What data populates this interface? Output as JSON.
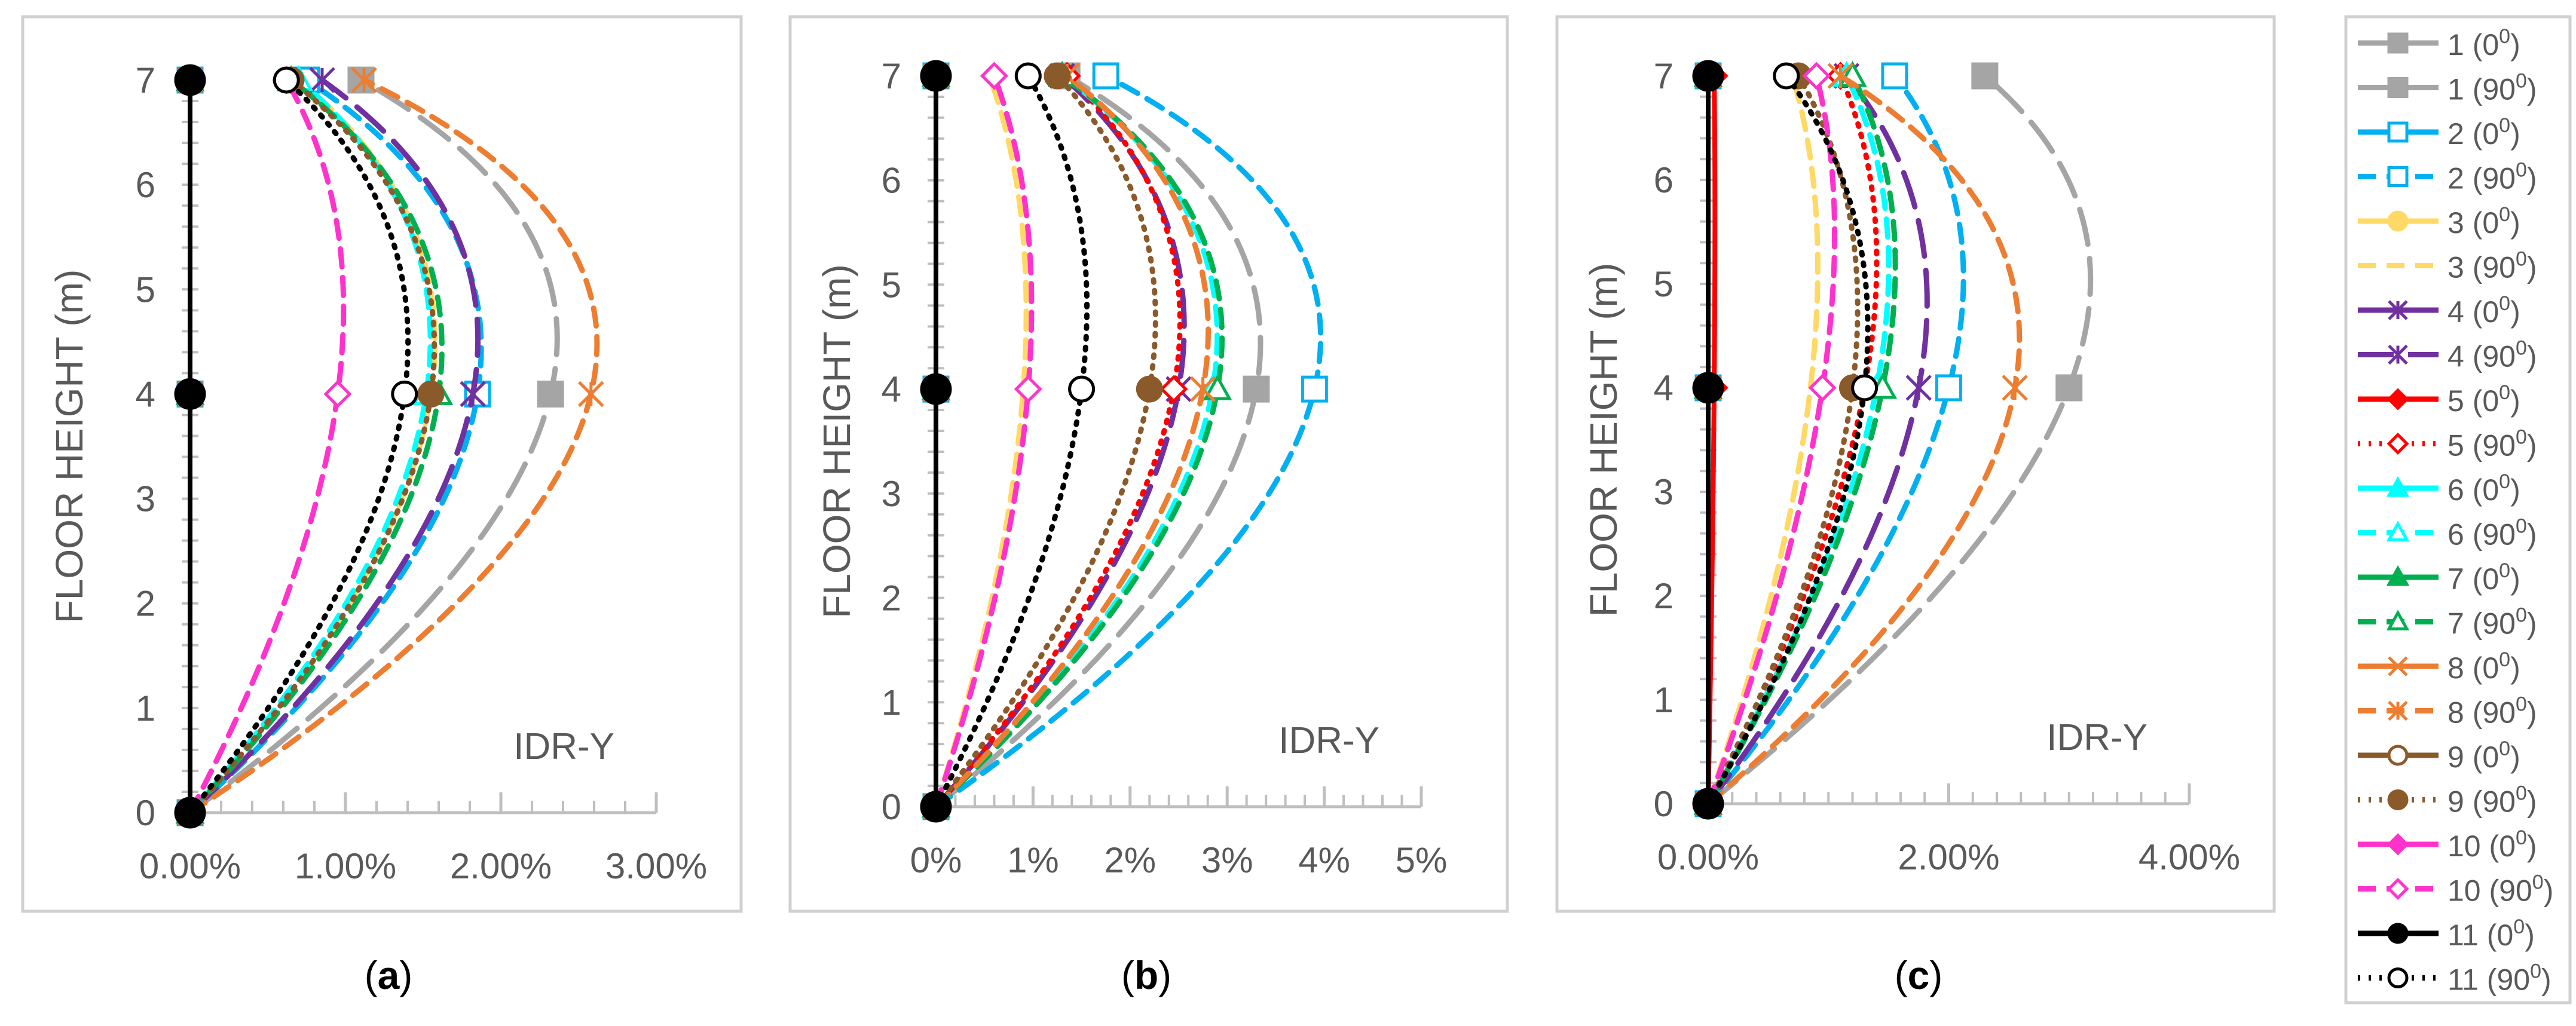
{
  "figure": {
    "colors": {
      "s1": "#A5A5A5",
      "s2": "#00B0F0",
      "s3": "#FFD966",
      "s4": "#7030A0",
      "s5": "#FF0000",
      "s6": "#00FFFF",
      "s7": "#00B050",
      "s8": "#ED7D31",
      "s9": "#8B5A2B",
      "s10": "#FF33CC",
      "s11": "#000000",
      "s11a": "#002060"
    },
    "legend": [
      {
        "id": "1-0",
        "num": "1",
        "deg": "0",
        "color": "#A5A5A5",
        "dash": "solid",
        "marker": "square",
        "filled": true
      },
      {
        "id": "1-90",
        "num": "1",
        "deg": "90",
        "color": "#A5A5A5",
        "dash": "longdash",
        "marker": "square",
        "filled": true
      },
      {
        "id": "2-0",
        "num": "2",
        "deg": "0",
        "color": "#00B0F0",
        "dash": "solid",
        "marker": "square",
        "filled": false
      },
      {
        "id": "2-90",
        "num": "2",
        "deg": "90",
        "color": "#00B0F0",
        "dash": "dash",
        "marker": "square",
        "filled": false
      },
      {
        "id": "3-0",
        "num": "3",
        "deg": "0",
        "color": "#FFD966",
        "dash": "solid",
        "marker": "circle",
        "filled": true
      },
      {
        "id": "3-90",
        "num": "3",
        "deg": "90",
        "color": "#FFD966",
        "dash": "dash",
        "marker": "none",
        "filled": false
      },
      {
        "id": "4-0",
        "num": "4",
        "deg": "0",
        "color": "#7030A0",
        "dash": "solid",
        "marker": "asterisk",
        "filled": true
      },
      {
        "id": "4-90",
        "num": "4",
        "deg": "90",
        "color": "#7030A0",
        "dash": "longdash",
        "marker": "asterisk",
        "filled": true
      },
      {
        "id": "5-0",
        "num": "5",
        "deg": "0",
        "color": "#FF0000",
        "dash": "solid",
        "marker": "diamond",
        "filled": true
      },
      {
        "id": "5-90",
        "num": "5",
        "deg": "90",
        "color": "#FF0000",
        "dash": "dot",
        "marker": "diamond",
        "filled": false
      },
      {
        "id": "6-0",
        "num": "6",
        "deg": "0",
        "color": "#00FFFF",
        "dash": "solid",
        "marker": "triangle",
        "filled": true
      },
      {
        "id": "6-90",
        "num": "6",
        "deg": "90",
        "color": "#00FFFF",
        "dash": "dash",
        "marker": "triangle",
        "filled": false
      },
      {
        "id": "7-0",
        "num": "7",
        "deg": "0",
        "color": "#00B050",
        "dash": "solid",
        "marker": "triangle",
        "filled": true
      },
      {
        "id": "7-90",
        "num": "7",
        "deg": "90",
        "color": "#00B050",
        "dash": "dash",
        "marker": "triangle",
        "filled": false
      },
      {
        "id": "8-0",
        "num": "8",
        "deg": "0",
        "color": "#ED7D31",
        "dash": "solid",
        "marker": "x",
        "filled": true
      },
      {
        "id": "8-90",
        "num": "8",
        "deg": "90",
        "color": "#ED7D31",
        "dash": "dash",
        "marker": "asterisk",
        "filled": true
      },
      {
        "id": "9-0",
        "num": "9",
        "deg": "0",
        "color": "#8B5A2B",
        "dash": "solid",
        "marker": "circle",
        "filled": false
      },
      {
        "id": "9-90",
        "num": "9",
        "deg": "90",
        "color": "#8B5A2B",
        "dash": "dot",
        "marker": "circle",
        "filled": true
      },
      {
        "id": "10-0",
        "num": "10",
        "deg": "0",
        "color": "#FF33CC",
        "dash": "solid",
        "marker": "diamond",
        "filled": true
      },
      {
        "id": "10-90",
        "num": "10",
        "deg": "90",
        "color": "#FF33CC",
        "dash": "dash",
        "marker": "diamond",
        "filled": false
      },
      {
        "id": "11-0",
        "num": "11",
        "deg": "0",
        "color": "#002060",
        "dash": "solid",
        "marker": "circle",
        "filled": true
      },
      {
        "id": "11-90",
        "num": "11",
        "deg": "90",
        "color": "#000000",
        "dash": "dot",
        "marker": "circle",
        "filled": false
      }
    ]
  },
  "chart_data": [
    {
      "type": "line",
      "panel_label": "a",
      "title": "",
      "annotation": "IDR-Y",
      "ylabel": "FLOOR HEIGHT (m)",
      "xlabel": "",
      "xlim": [
        0,
        3
      ],
      "ylim": [
        0,
        7
      ],
      "xticks": [
        0,
        1,
        2,
        3
      ],
      "xtick_labels": [
        "0.00%",
        "1.00%",
        "2.00%",
        "3.00%"
      ],
      "yticks": [
        0,
        1,
        2,
        3,
        4,
        5,
        6,
        7
      ],
      "ytick_labels": [
        "0",
        "1",
        "2",
        "3",
        "4",
        "5",
        "6",
        "7"
      ],
      "y": [
        0,
        4,
        7
      ],
      "series": [
        {
          "id": "1-0",
          "name": "1 (0⁰)",
          "values": [
            0,
            0,
            0
          ]
        },
        {
          "id": "1-90",
          "name": "1 (90⁰)",
          "values": [
            0,
            2.32,
            1.1
          ]
        },
        {
          "id": "2-0",
          "name": "2 (0⁰)",
          "values": [
            0,
            0,
            0
          ]
        },
        {
          "id": "2-90",
          "name": "2 (90⁰)",
          "values": [
            0,
            1.85,
            0.75
          ]
        },
        {
          "id": "3-0",
          "name": "3 (0⁰)",
          "values": [
            0,
            0,
            0
          ]
        },
        {
          "id": "3-90",
          "name": "3 (90⁰)",
          "values": [
            0,
            1.55,
            0.7
          ]
        },
        {
          "id": "4-0",
          "name": "4 (0⁰)",
          "values": [
            0,
            0,
            0
          ]
        },
        {
          "id": "4-90",
          "name": "4 (90⁰)",
          "values": [
            0,
            1.82,
            0.85
          ]
        },
        {
          "id": "5-0",
          "name": "5 (0⁰)",
          "values": [
            0,
            0,
            0
          ]
        },
        {
          "id": "5-90",
          "name": "5 (90⁰)",
          "values": [
            0,
            1.55,
            0.65
          ]
        },
        {
          "id": "6-0",
          "name": "6 (0⁰)",
          "values": [
            0,
            0,
            0
          ]
        },
        {
          "id": "6-90",
          "name": "6 (90⁰)",
          "values": [
            0,
            1.52,
            0.7
          ]
        },
        {
          "id": "7-0",
          "name": "7 (0⁰)",
          "values": [
            0,
            0,
            0
          ]
        },
        {
          "id": "7-90",
          "name": "7 (90⁰)",
          "values": [
            0,
            1.6,
            0.65
          ]
        },
        {
          "id": "8-0",
          "name": "8 (0⁰)",
          "values": [
            0,
            0,
            0
          ]
        },
        {
          "id": "8-90",
          "name": "8 (90⁰)",
          "values": [
            0,
            2.58,
            1.12
          ]
        },
        {
          "id": "9-0",
          "name": "9 (0⁰)",
          "values": [
            0,
            0,
            0
          ]
        },
        {
          "id": "9-90",
          "name": "9 (90⁰)",
          "values": [
            0,
            1.55,
            0.65
          ]
        },
        {
          "id": "10-0",
          "name": "10 (0⁰)",
          "values": [
            0,
            0,
            0
          ]
        },
        {
          "id": "10-90",
          "name": "10 (90⁰)",
          "values": [
            0,
            0.95,
            0.62
          ]
        },
        {
          "id": "11-0",
          "name": "11 (0⁰)",
          "values": [
            0,
            0,
            0
          ]
        },
        {
          "id": "11-90",
          "name": "11 (90⁰)",
          "values": [
            0,
            1.38,
            0.62
          ]
        }
      ]
    },
    {
      "type": "line",
      "panel_label": "b",
      "title": "",
      "annotation": "IDR-Y",
      "ylabel": "FLOOR HEIGHT (m)",
      "xlabel": "",
      "xlim": [
        0,
        5
      ],
      "ylim": [
        0,
        7
      ],
      "xticks": [
        0,
        1,
        2,
        3,
        4,
        5
      ],
      "xtick_labels": [
        "0%",
        "1%",
        "2%",
        "3%",
        "4%",
        "5%"
      ],
      "yticks": [
        0,
        1,
        2,
        3,
        4,
        5,
        6,
        7
      ],
      "ytick_labels": [
        "0",
        "1",
        "2",
        "3",
        "4",
        "5",
        "6",
        "7"
      ],
      "y": [
        0,
        4,
        7
      ],
      "series": [
        {
          "id": "1-0",
          "name": "1 (0⁰)",
          "values": [
            0,
            0,
            0
          ]
        },
        {
          "id": "1-90",
          "name": "1 (90⁰)",
          "values": [
            0,
            3.3,
            1.35
          ]
        },
        {
          "id": "2-0",
          "name": "2 (0⁰)",
          "values": [
            0,
            0,
            0
          ]
        },
        {
          "id": "2-90",
          "name": "2 (90⁰)",
          "values": [
            0,
            3.9,
            1.75
          ]
        },
        {
          "id": "3-0",
          "name": "3 (0⁰)",
          "values": [
            0,
            0,
            0
          ]
        },
        {
          "id": "3-90",
          "name": "3 (90⁰)",
          "values": [
            0,
            0.9,
            0.55
          ]
        },
        {
          "id": "4-0",
          "name": "4 (0⁰)",
          "values": [
            0,
            0,
            0
          ]
        },
        {
          "id": "4-90",
          "name": "4 (90⁰)",
          "values": [
            0,
            2.5,
            1.3
          ]
        },
        {
          "id": "5-0",
          "name": "5 (0⁰)",
          "values": [
            0,
            0,
            0
          ]
        },
        {
          "id": "5-90",
          "name": "5 (90⁰)",
          "values": [
            0,
            2.45,
            1.35
          ]
        },
        {
          "id": "6-0",
          "name": "6 (0⁰)",
          "values": [
            0,
            0,
            0
          ]
        },
        {
          "id": "6-90",
          "name": "6 (90⁰)",
          "values": [
            0,
            2.85,
            1.3
          ]
        },
        {
          "id": "7-0",
          "name": "7 (0⁰)",
          "values": [
            0,
            0,
            0
          ]
        },
        {
          "id": "7-90",
          "name": "7 (90⁰)",
          "values": [
            0,
            2.9,
            1.3
          ]
        },
        {
          "id": "8-0",
          "name": "8 (0⁰)",
          "values": [
            0,
            0,
            0
          ]
        },
        {
          "id": "8-90",
          "name": "8 (90⁰)",
          "values": [
            0,
            2.75,
            1.35
          ]
        },
        {
          "id": "9-0",
          "name": "9 (0⁰)",
          "values": [
            0,
            0,
            0
          ]
        },
        {
          "id": "9-90",
          "name": "9 (90⁰)",
          "values": [
            0,
            2.2,
            1.25
          ]
        },
        {
          "id": "10-0",
          "name": "10 (0⁰)",
          "values": [
            0,
            0,
            0
          ]
        },
        {
          "id": "10-90",
          "name": "10 (90⁰)",
          "values": [
            0,
            0.95,
            0.6
          ]
        },
        {
          "id": "11-0",
          "name": "11 (0⁰)",
          "values": [
            0,
            0,
            0
          ]
        },
        {
          "id": "11-90",
          "name": "11 (90⁰)",
          "values": [
            0,
            1.5,
            0.95
          ]
        }
      ]
    },
    {
      "type": "line",
      "panel_label": "c",
      "title": "",
      "annotation": "IDR-Y",
      "ylabel": "FLOOR HEIGHT (m)",
      "xlabel": "",
      "xlim": [
        0,
        4
      ],
      "ylim": [
        0,
        7
      ],
      "xticks": [
        0,
        2,
        4
      ],
      "xtick_labels": [
        "0.00%",
        "2.00%",
        "4.00%"
      ],
      "yticks": [
        0,
        1,
        2,
        3,
        4,
        5,
        6,
        7
      ],
      "ytick_labels": [
        "0",
        "1",
        "2",
        "3",
        "4",
        "5",
        "6",
        "7"
      ],
      "y": [
        0,
        4,
        7
      ],
      "series": [
        {
          "id": "1-0",
          "name": "1 (0⁰)",
          "values": [
            0,
            0,
            0
          ]
        },
        {
          "id": "1-90",
          "name": "1 (90⁰)",
          "values": [
            0,
            3.0,
            2.3
          ]
        },
        {
          "id": "2-0",
          "name": "2 (0⁰)",
          "values": [
            0,
            0,
            0
          ]
        },
        {
          "id": "2-90",
          "name": "2 (90⁰)",
          "values": [
            0,
            2.0,
            1.55
          ]
        },
        {
          "id": "3-0",
          "name": "3 (0⁰)",
          "values": [
            0,
            0,
            0
          ]
        },
        {
          "id": "3-90",
          "name": "3 (90⁰)",
          "values": [
            0,
            0.85,
            0.7
          ]
        },
        {
          "id": "4-0",
          "name": "4 (0⁰)",
          "values": [
            0,
            0,
            0
          ]
        },
        {
          "id": "4-90",
          "name": "4 (90⁰)",
          "values": [
            0,
            1.75,
            1.15
          ]
        },
        {
          "id": "5-0",
          "name": "5 (0⁰)",
          "values": [
            0,
            0.05,
            0.05
          ]
        },
        {
          "id": "5-90",
          "name": "5 (90⁰)",
          "values": [
            0,
            1.3,
            1.1
          ]
        },
        {
          "id": "6-0",
          "name": "6 (0⁰)",
          "values": [
            0,
            0,
            0
          ]
        },
        {
          "id": "6-90",
          "name": "6 (90⁰)",
          "values": [
            0,
            1.4,
            1.15
          ]
        },
        {
          "id": "7-0",
          "name": "7 (0⁰)",
          "values": [
            0,
            0,
            0
          ]
        },
        {
          "id": "7-90",
          "name": "7 (90⁰)",
          "values": [
            0,
            1.45,
            1.2
          ]
        },
        {
          "id": "8-0",
          "name": "8 (0⁰)",
          "values": [
            0,
            0,
            0
          ]
        },
        {
          "id": "8-90",
          "name": "8 (90⁰)",
          "values": [
            0,
            2.55,
            1.1
          ]
        },
        {
          "id": "9-0",
          "name": "9 (0⁰)",
          "values": [
            0,
            0,
            0
          ]
        },
        {
          "id": "9-90",
          "name": "9 (90⁰)",
          "values": [
            0,
            1.2,
            0.75
          ]
        },
        {
          "id": "10-0",
          "name": "10 (0⁰)",
          "values": [
            0,
            0,
            0
          ]
        },
        {
          "id": "10-90",
          "name": "10 (90⁰)",
          "values": [
            0,
            0.95,
            0.9
          ]
        },
        {
          "id": "11-0",
          "name": "11 (0⁰)",
          "values": [
            0,
            0,
            0
          ]
        },
        {
          "id": "11-90",
          "name": "11 (90⁰)",
          "values": [
            0,
            1.3,
            0.65
          ]
        }
      ]
    }
  ]
}
